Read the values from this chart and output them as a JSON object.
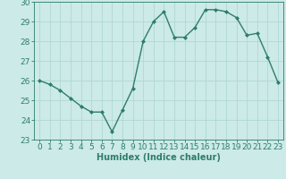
{
  "x": [
    0,
    1,
    2,
    3,
    4,
    5,
    6,
    7,
    8,
    9,
    10,
    11,
    12,
    13,
    14,
    15,
    16,
    17,
    18,
    19,
    20,
    21,
    22,
    23
  ],
  "y": [
    26.0,
    25.8,
    25.5,
    25.1,
    24.7,
    24.4,
    24.4,
    23.4,
    24.5,
    25.6,
    28.0,
    29.0,
    29.5,
    28.2,
    28.2,
    28.7,
    29.6,
    29.6,
    29.5,
    29.2,
    28.3,
    28.4,
    27.2,
    25.9
  ],
  "line_color": "#2e7d6e",
  "marker": "D",
  "markersize": 2,
  "linewidth": 1.0,
  "xlabel": "Humidex (Indice chaleur)",
  "xlim": [
    -0.5,
    23.5
  ],
  "ylim": [
    23,
    30
  ],
  "yticks": [
    23,
    24,
    25,
    26,
    27,
    28,
    29,
    30
  ],
  "xticks": [
    0,
    1,
    2,
    3,
    4,
    5,
    6,
    7,
    8,
    9,
    10,
    11,
    12,
    13,
    14,
    15,
    16,
    17,
    18,
    19,
    20,
    21,
    22,
    23
  ],
  "bg_color": "#cceae7",
  "grid_color": "#b0d8d4",
  "tick_color": "#2e7d6e",
  "label_color": "#2e7d6e",
  "xlabel_fontsize": 7,
  "tick_fontsize": 6.5
}
